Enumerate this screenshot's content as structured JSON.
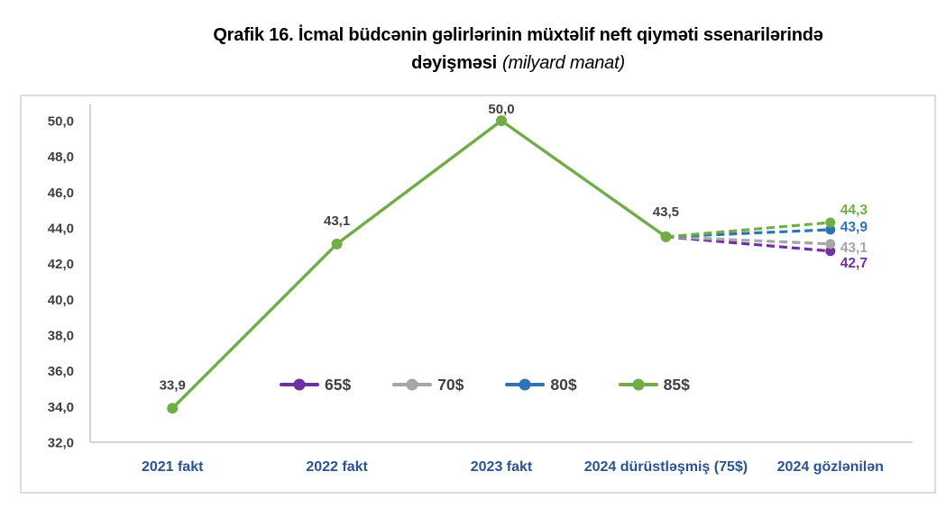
{
  "page_title": {
    "line1": "Qrafik 16. İcmal büdcənin gəlirlərinin müxtəlif neft qiyməti ssenarilərində",
    "line2_emphasis": "dəyişməsi",
    "line2_note": "(milyard manat)"
  },
  "colors": {
    "background": "#ffffff",
    "chart_border": "#dcdcdc",
    "axis_line": "#c6c6c6",
    "tick_label": "#404040",
    "category_label": "#2a5391",
    "data_label": "#404040",
    "legend_label": "#404040"
  },
  "chart_data": {
    "type": "line",
    "title": "Qrafik 16. İcmal büdcənin gəlirlərinin müxtəlif neft qiyməti ssenarilərində dəyişməsi",
    "unit": "milyard manat",
    "categories": [
      "2021 fakt",
      "2022 fakt",
      "2023 fakt",
      "2024 dürüstləşmiş (75$)",
      "2024 gözlənilən"
    ],
    "ylim": [
      32,
      50
    ],
    "grid": false,
    "legend_position": "inside-bottom-center",
    "yticks": [
      {
        "value": 32,
        "label": "32,0"
      },
      {
        "value": 34,
        "label": "34,0"
      },
      {
        "value": 36,
        "label": "36,0"
      },
      {
        "value": 38,
        "label": "38,0"
      },
      {
        "value": 40,
        "label": "40,0"
      },
      {
        "value": 42,
        "label": "42,0"
      },
      {
        "value": 44,
        "label": "44,0"
      },
      {
        "value": 46,
        "label": "46,0"
      },
      {
        "value": 48,
        "label": "48,0"
      },
      {
        "value": 50,
        "label": "50,0"
      }
    ],
    "fact_line": {
      "name": "fakt",
      "color": "#70ad47",
      "x": [
        0,
        1,
        2,
        3
      ],
      "values": [
        33.9,
        43.1,
        50.0,
        43.5
      ],
      "point_labels": [
        "33,9",
        "43,1",
        "50,0",
        "43,5"
      ],
      "point_label_dy": [
        -26,
        -26,
        -13,
        -28
      ]
    },
    "series": [
      {
        "name": "65$",
        "color": "#7030a0",
        "dashed": true,
        "x": [
          3,
          4
        ],
        "values": [
          43.5,
          42.7
        ],
        "end_label": "42,7",
        "end_label_dy": 13
      },
      {
        "name": "70$",
        "color": "#a6a6a6",
        "dashed": true,
        "x": [
          3,
          4
        ],
        "values": [
          43.5,
          43.1
        ],
        "end_label": "43,1",
        "end_label_dy": 4
      },
      {
        "name": "80$",
        "color": "#2e74b5",
        "dashed": true,
        "x": [
          3,
          4
        ],
        "values": [
          43.5,
          43.9
        ],
        "end_label": "43,9",
        "end_label_dy": -3
      },
      {
        "name": "85$",
        "color": "#70ad47",
        "dashed": true,
        "x": [
          3,
          4
        ],
        "values": [
          43.5,
          44.3
        ],
        "end_label": "44,3",
        "end_label_dy": -14
      }
    ]
  }
}
